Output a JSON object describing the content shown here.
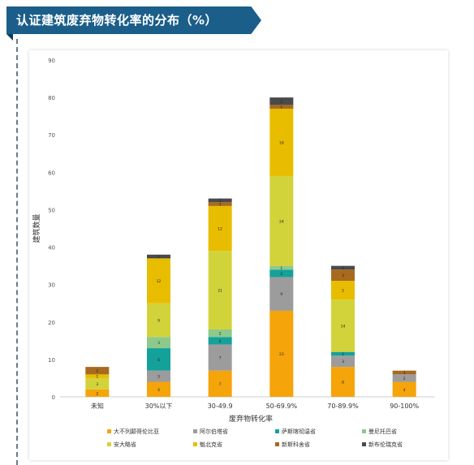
{
  "header": {
    "title": "认证建筑废弃物转化率的分布（%）"
  },
  "colors": {
    "banner": "#1b5e8a",
    "series": [
      "#f5a40a",
      "#9c9c9c",
      "#14a19a",
      "#8dc98c",
      "#d2d33a",
      "#e8bd00",
      "#a86a1e",
      "#4a4a4a"
    ]
  },
  "chart_data": {
    "type": "bar",
    "stacked": true,
    "xlabel": "废弃物转化率",
    "ylabel": "建筑数量",
    "ylim": [
      0,
      90
    ],
    "yticks": [
      0,
      10,
      20,
      30,
      40,
      50,
      60,
      70,
      80,
      90
    ],
    "grid": false,
    "legend_position": "bottom",
    "categories": [
      "未知",
      "30%以下",
      "30-49.9",
      "50-69.9%",
      "70-89.9%",
      "90-100%"
    ],
    "series": [
      {
        "name": "大不列颠哥伦比亚",
        "color": "#f5a40a",
        "values": [
          2,
          4,
          7,
          23,
          8,
          4
        ]
      },
      {
        "name": "阿尔伯塔省",
        "color": "#9c9c9c",
        "values": [
          0,
          3,
          7,
          9,
          3,
          2
        ]
      },
      {
        "name": "萨斯喀彻温省",
        "color": "#14a19a",
        "values": [
          0,
          6,
          2,
          2,
          1,
          0
        ]
      },
      {
        "name": "曼尼托巴省",
        "color": "#8dc98c",
        "values": [
          0,
          3,
          2,
          1,
          0,
          0
        ]
      },
      {
        "name": "安大略省",
        "color": "#d2d33a",
        "values": [
          3,
          9,
          21,
          24,
          14,
          0
        ]
      },
      {
        "name": "魁北克省",
        "color": "#e8bd00",
        "values": [
          1,
          12,
          12,
          18,
          5,
          0
        ]
      },
      {
        "name": "新斯科舍省",
        "color": "#a86a1e",
        "values": [
          2,
          0,
          1,
          1,
          3,
          1
        ]
      },
      {
        "name": "新布伦瑞克省",
        "color": "#4a4a4a",
        "values": [
          0,
          1,
          1,
          2,
          1,
          0
        ]
      }
    ]
  }
}
